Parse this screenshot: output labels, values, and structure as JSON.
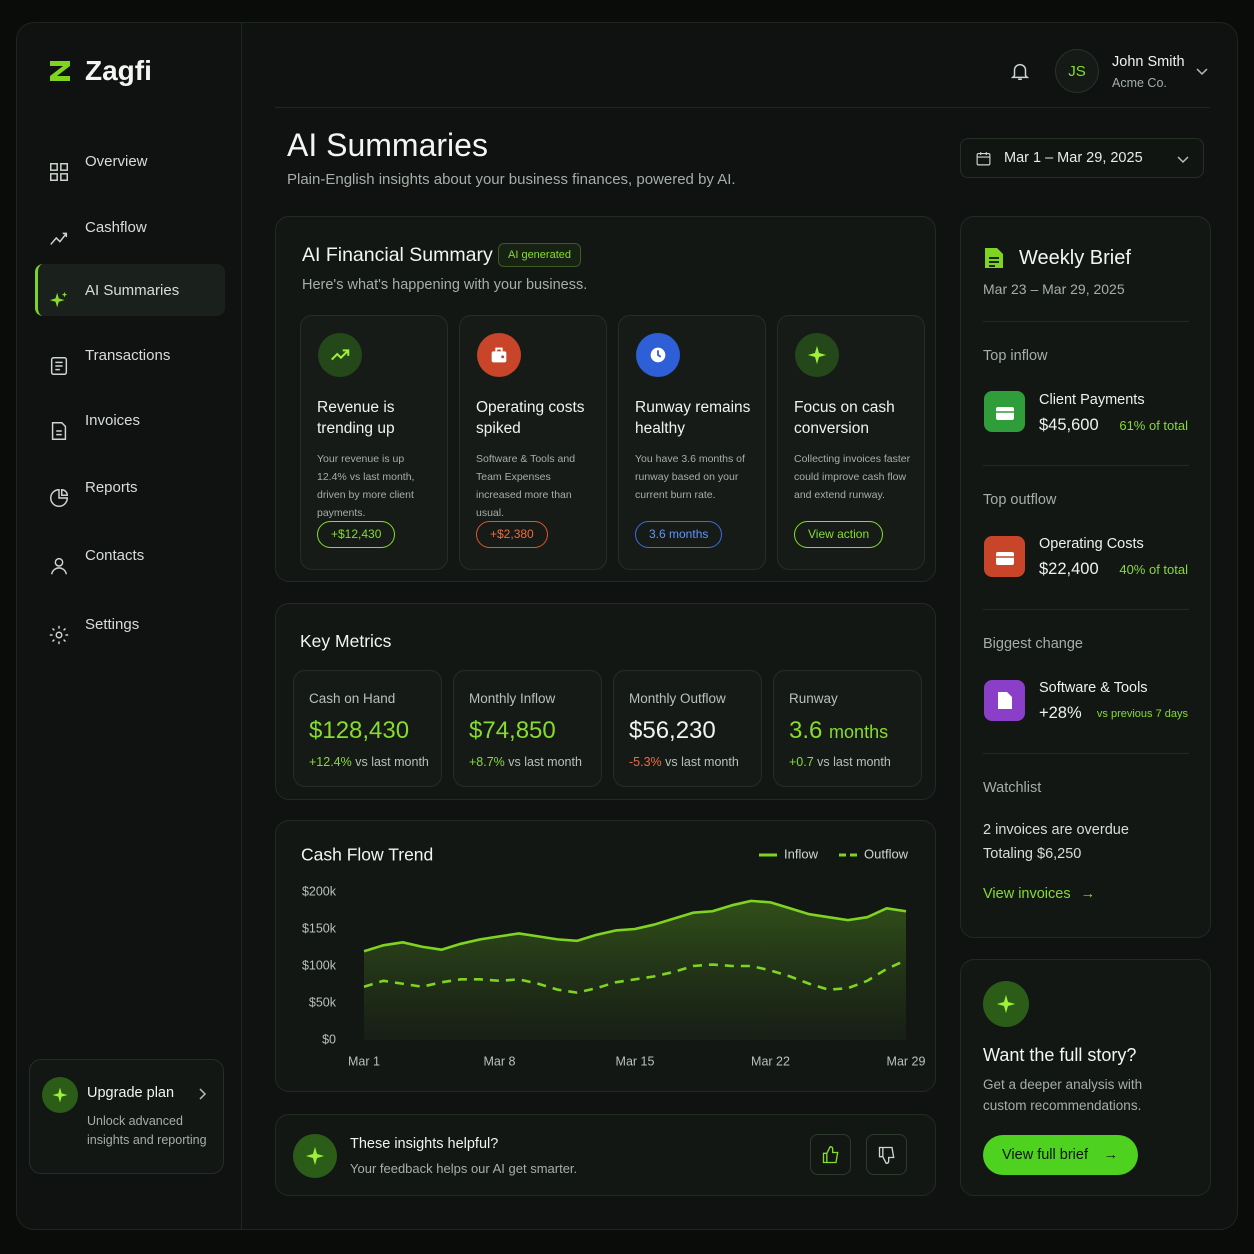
{
  "sidebar": {
    "brand": "Zagfi",
    "nav": [
      "Overview",
      "Cashflow",
      "AI Summaries",
      "Transactions",
      "Invoices",
      "Reports",
      "Contacts",
      "Settings"
    ],
    "upgrade": {
      "title": "Upgrade plan",
      "text": "Unlock advanced insights and reporting"
    }
  },
  "header": {
    "initials": "JS",
    "user_name": "John Smith",
    "company": "Acme Co."
  },
  "page": {
    "title": "AI Summaries",
    "subtitle": "Plain-English insights about your business finances, powered by AI.",
    "date_range": "Mar 1 – Mar 29, 2025"
  },
  "summary": {
    "title": "AI Financial Summary",
    "badge": "AI generated",
    "subtitle": "Here's what's happening with your business.",
    "cards": [
      {
        "title": "Revenue is trending up",
        "text": "Your revenue is up 12.4% vs last month, driven by more client payments.",
        "pill": "+$12,430"
      },
      {
        "title": "Operating costs spiked",
        "text": "Software & Tools and Team Expenses increased more than usual.",
        "pill": "+$2,380"
      },
      {
        "title": "Runway remains healthy",
        "text": "You have 3.6 months of runway based on your current burn rate.",
        "pill": "3.6 months"
      },
      {
        "title": "Focus on cash conversion",
        "text": "Collecting invoices faster could improve cash flow and extend runway.",
        "pill": "View action"
      }
    ]
  },
  "metrics": {
    "title": "Key Metrics",
    "items": [
      {
        "label": "Cash on Hand",
        "value": "$128,430",
        "change": "+12.4%",
        "note": "vs last month"
      },
      {
        "label": "Monthly Inflow",
        "value": "$74,850",
        "change": "+8.7%",
        "note": "vs last month"
      },
      {
        "label": "Monthly Outflow",
        "value": "$56,230",
        "change": "-5.3%",
        "note": "vs last month"
      },
      {
        "label": "Runway",
        "value": "3.6",
        "unit": "months",
        "change": "+0.7",
        "note": "vs last month"
      }
    ]
  },
  "chart_data": {
    "type": "line",
    "title": "Cash Flow Trend",
    "categories": [
      "Mar 1",
      null,
      null,
      null,
      null,
      null,
      null,
      "Mar 8",
      null,
      null,
      null,
      null,
      null,
      null,
      "Mar 15",
      null,
      null,
      null,
      null,
      null,
      null,
      "Mar 22",
      null,
      null,
      null,
      null,
      null,
      null,
      "Mar 29"
    ],
    "series": [
      {
        "name": "Inflow",
        "color": "#7fd321",
        "line_style": "solid",
        "values": [
          120000,
          128000,
          132000,
          126000,
          122000,
          130000,
          136000,
          140000,
          144000,
          140000,
          136000,
          134000,
          142000,
          148000,
          150000,
          156000,
          164000,
          172000,
          174000,
          182000,
          188000,
          186000,
          178000,
          170000,
          166000,
          162000,
          166000,
          178000,
          174000
        ]
      },
      {
        "name": "Outflow",
        "color": "#7fd321",
        "line_style": "dashed",
        "values": [
          72000,
          80000,
          76000,
          72000,
          78000,
          82000,
          82000,
          80000,
          82000,
          76000,
          68000,
          64000,
          70000,
          78000,
          82000,
          86000,
          92000,
          100000,
          102000,
          100000,
          100000,
          94000,
          86000,
          76000,
          68000,
          70000,
          80000,
          96000,
          108000
        ]
      }
    ],
    "ylim": [
      0,
      200000
    ],
    "yticks": [
      {
        "value": 0,
        "label": "$0"
      },
      {
        "value": 50000,
        "label": "$50k"
      },
      {
        "value": 100000,
        "label": "$100k"
      },
      {
        "value": 150000,
        "label": "$150k"
      },
      {
        "value": 200000,
        "label": "$200k"
      }
    ],
    "grid": false,
    "legend": "top-right"
  },
  "feedback": {
    "title": "These insights helpful?",
    "text": "Your feedback helps our AI get smarter."
  },
  "weekly_brief": {
    "title": "Weekly Brief",
    "date_range": "Mar 23 – Mar 29, 2025",
    "top_inflow": {
      "label": "Top inflow",
      "name": "Client Payments",
      "amount": "$45,600",
      "share": "61% of total"
    },
    "top_outflow": {
      "label": "Top outflow",
      "name": "Operating Costs",
      "amount": "$22,400",
      "share": "40% of total"
    },
    "biggest_change": {
      "label": "Biggest change",
      "name": "Software & Tools",
      "amount": "+28%",
      "share": "vs previous 7 days"
    },
    "watchlist": {
      "label": "Watchlist",
      "line1": "2 invoices are overdue",
      "line2": "Totaling $6,250",
      "link": "View invoices"
    }
  },
  "cta": {
    "title": "Want the full story?",
    "text": "Get a deeper analysis with custom recommendations.",
    "button": "View full brief"
  }
}
